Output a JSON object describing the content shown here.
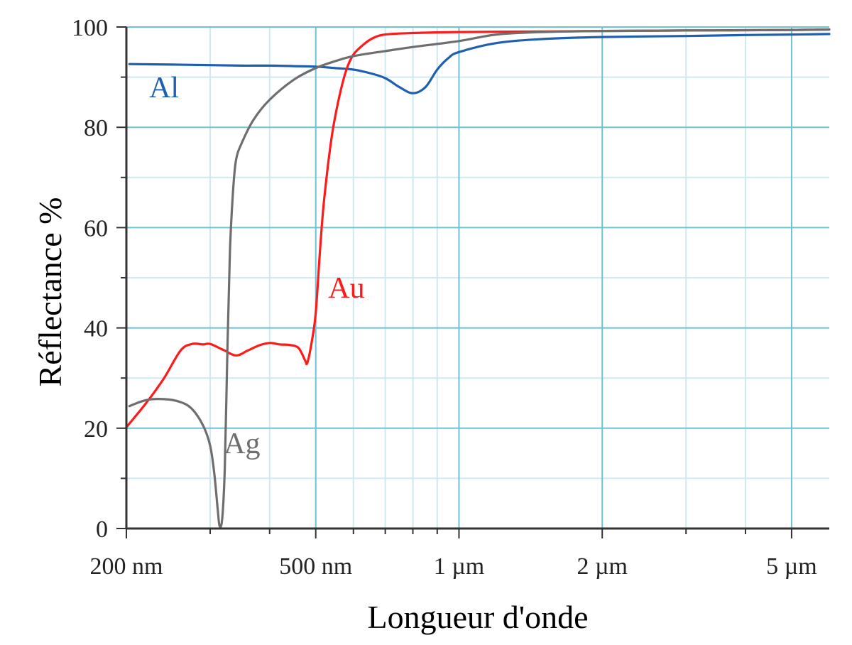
{
  "chart_data": {
    "type": "line",
    "title": "",
    "xlabel": "Longueur d'onde",
    "ylabel": "Réflectance %",
    "x_unit": "nm",
    "x_scale": "log",
    "xlim": [
      200,
      6000
    ],
    "ylim": [
      0,
      100
    ],
    "grid": true,
    "legend": "none",
    "x_ticks": [
      {
        "value": 200,
        "label": "200 nm"
      },
      {
        "value": 500,
        "label": "500 nm"
      },
      {
        "value": 1000,
        "label": "1 µm"
      },
      {
        "value": 2000,
        "label": "2 µm"
      },
      {
        "value": 5000,
        "label": "5 µm"
      }
    ],
    "y_ticks": [
      {
        "value": 0,
        "label": "0"
      },
      {
        "value": 20,
        "label": "20"
      },
      {
        "value": 40,
        "label": "40"
      },
      {
        "value": 60,
        "label": "60"
      },
      {
        "value": 80,
        "label": "80"
      },
      {
        "value": 100,
        "label": "100"
      }
    ],
    "series": [
      {
        "name": "Al",
        "color": "#1f5fb0",
        "label_pos": [
          240,
          86
        ],
        "points": [
          [
            203,
            92.6
          ],
          [
            250,
            92.5
          ],
          [
            300,
            92.4
          ],
          [
            350,
            92.3
          ],
          [
            400,
            92.3
          ],
          [
            450,
            92.2
          ],
          [
            500,
            92.1
          ],
          [
            550,
            91.8
          ],
          [
            600,
            91.5
          ],
          [
            650,
            90.8
          ],
          [
            700,
            89.8
          ],
          [
            750,
            88.0
          ],
          [
            800,
            86.8
          ],
          [
            850,
            88.0
          ],
          [
            900,
            91.5
          ],
          [
            950,
            93.8
          ],
          [
            1000,
            95.0
          ],
          [
            1200,
            96.8
          ],
          [
            1500,
            97.6
          ],
          [
            2000,
            98.0
          ],
          [
            3000,
            98.2
          ],
          [
            4000,
            98.4
          ],
          [
            5000,
            98.5
          ],
          [
            6000,
            98.6
          ]
        ]
      },
      {
        "name": "Au",
        "color": "#ff1a1a",
        "label_pos": [
          580,
          46
        ],
        "points": [
          [
            200,
            20.2
          ],
          [
            220,
            25
          ],
          [
            240,
            30
          ],
          [
            260,
            35.5
          ],
          [
            275,
            36.8
          ],
          [
            290,
            36.7
          ],
          [
            300,
            36.8
          ],
          [
            320,
            35.6
          ],
          [
            340,
            34.5
          ],
          [
            360,
            35.5
          ],
          [
            380,
            36.5
          ],
          [
            400,
            37.0
          ],
          [
            420,
            36.7
          ],
          [
            440,
            36.6
          ],
          [
            460,
            36.0
          ],
          [
            475,
            33.5
          ],
          [
            480,
            33.0
          ],
          [
            490,
            37.0
          ],
          [
            500,
            43.0
          ],
          [
            510,
            55.0
          ],
          [
            520,
            65.0
          ],
          [
            540,
            78.0
          ],
          [
            560,
            86.0
          ],
          [
            580,
            91.5
          ],
          [
            600,
            94.5
          ],
          [
            630,
            96.5
          ],
          [
            660,
            97.8
          ],
          [
            700,
            98.5
          ],
          [
            800,
            98.8
          ],
          [
            1000,
            99.0
          ],
          [
            1500,
            99.1
          ],
          [
            2000,
            99.2
          ],
          [
            3000,
            99.3
          ],
          [
            5000,
            99.4
          ],
          [
            6000,
            99.5
          ]
        ]
      },
      {
        "name": "Ag",
        "color": "#6e6e6e",
        "label_pos": [
          350,
          15
        ],
        "points": [
          [
            203,
            24.4
          ],
          [
            220,
            25.6
          ],
          [
            240,
            25.8
          ],
          [
            260,
            25.2
          ],
          [
            275,
            23.8
          ],
          [
            290,
            20.5
          ],
          [
            300,
            16.5
          ],
          [
            306,
            11.0
          ],
          [
            311,
            4.0
          ],
          [
            314,
            0.5
          ],
          [
            318,
            2.0
          ],
          [
            322,
            12.0
          ],
          [
            326,
            35.0
          ],
          [
            330,
            55.0
          ],
          [
            335,
            67.0
          ],
          [
            340,
            73.5
          ],
          [
            350,
            77.0
          ],
          [
            370,
            81.5
          ],
          [
            400,
            85.5
          ],
          [
            450,
            89.5
          ],
          [
            500,
            91.8
          ],
          [
            550,
            93.2
          ],
          [
            600,
            94.2
          ],
          [
            700,
            95.2
          ],
          [
            800,
            96.0
          ],
          [
            1000,
            97.2
          ],
          [
            1200,
            98.5
          ],
          [
            1500,
            99.0
          ],
          [
            2000,
            99.2
          ],
          [
            3000,
            99.3
          ],
          [
            5000,
            99.4
          ],
          [
            6000,
            99.5
          ]
        ]
      }
    ]
  }
}
